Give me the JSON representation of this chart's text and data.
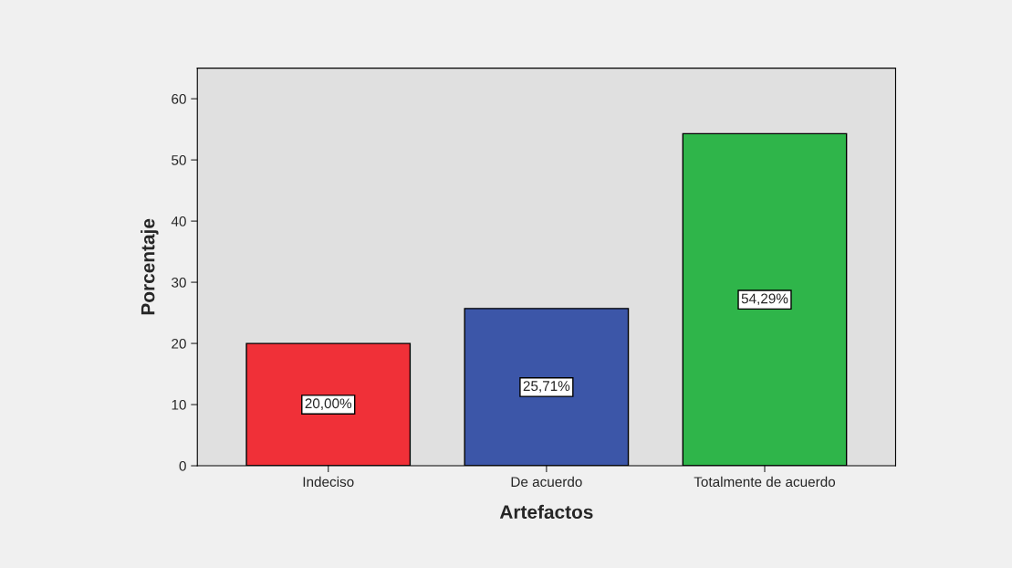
{
  "chart_data": {
    "type": "bar",
    "xlabel": "Artefactos",
    "ylabel": "Porcentaje",
    "categories": [
      "Indeciso",
      "De acuerdo",
      "Totalmente de acuerdo"
    ],
    "values": [
      20.0,
      25.71,
      54.29
    ],
    "colors": [
      "#f03038",
      "#3c56a8",
      "#2fb54a"
    ],
    "value_labels": [
      "20,00%",
      "25,71%",
      "54,29%"
    ],
    "ylim": [
      0,
      65
    ],
    "yticks": [
      0,
      10,
      20,
      30,
      40,
      50,
      60
    ],
    "grid": false
  }
}
